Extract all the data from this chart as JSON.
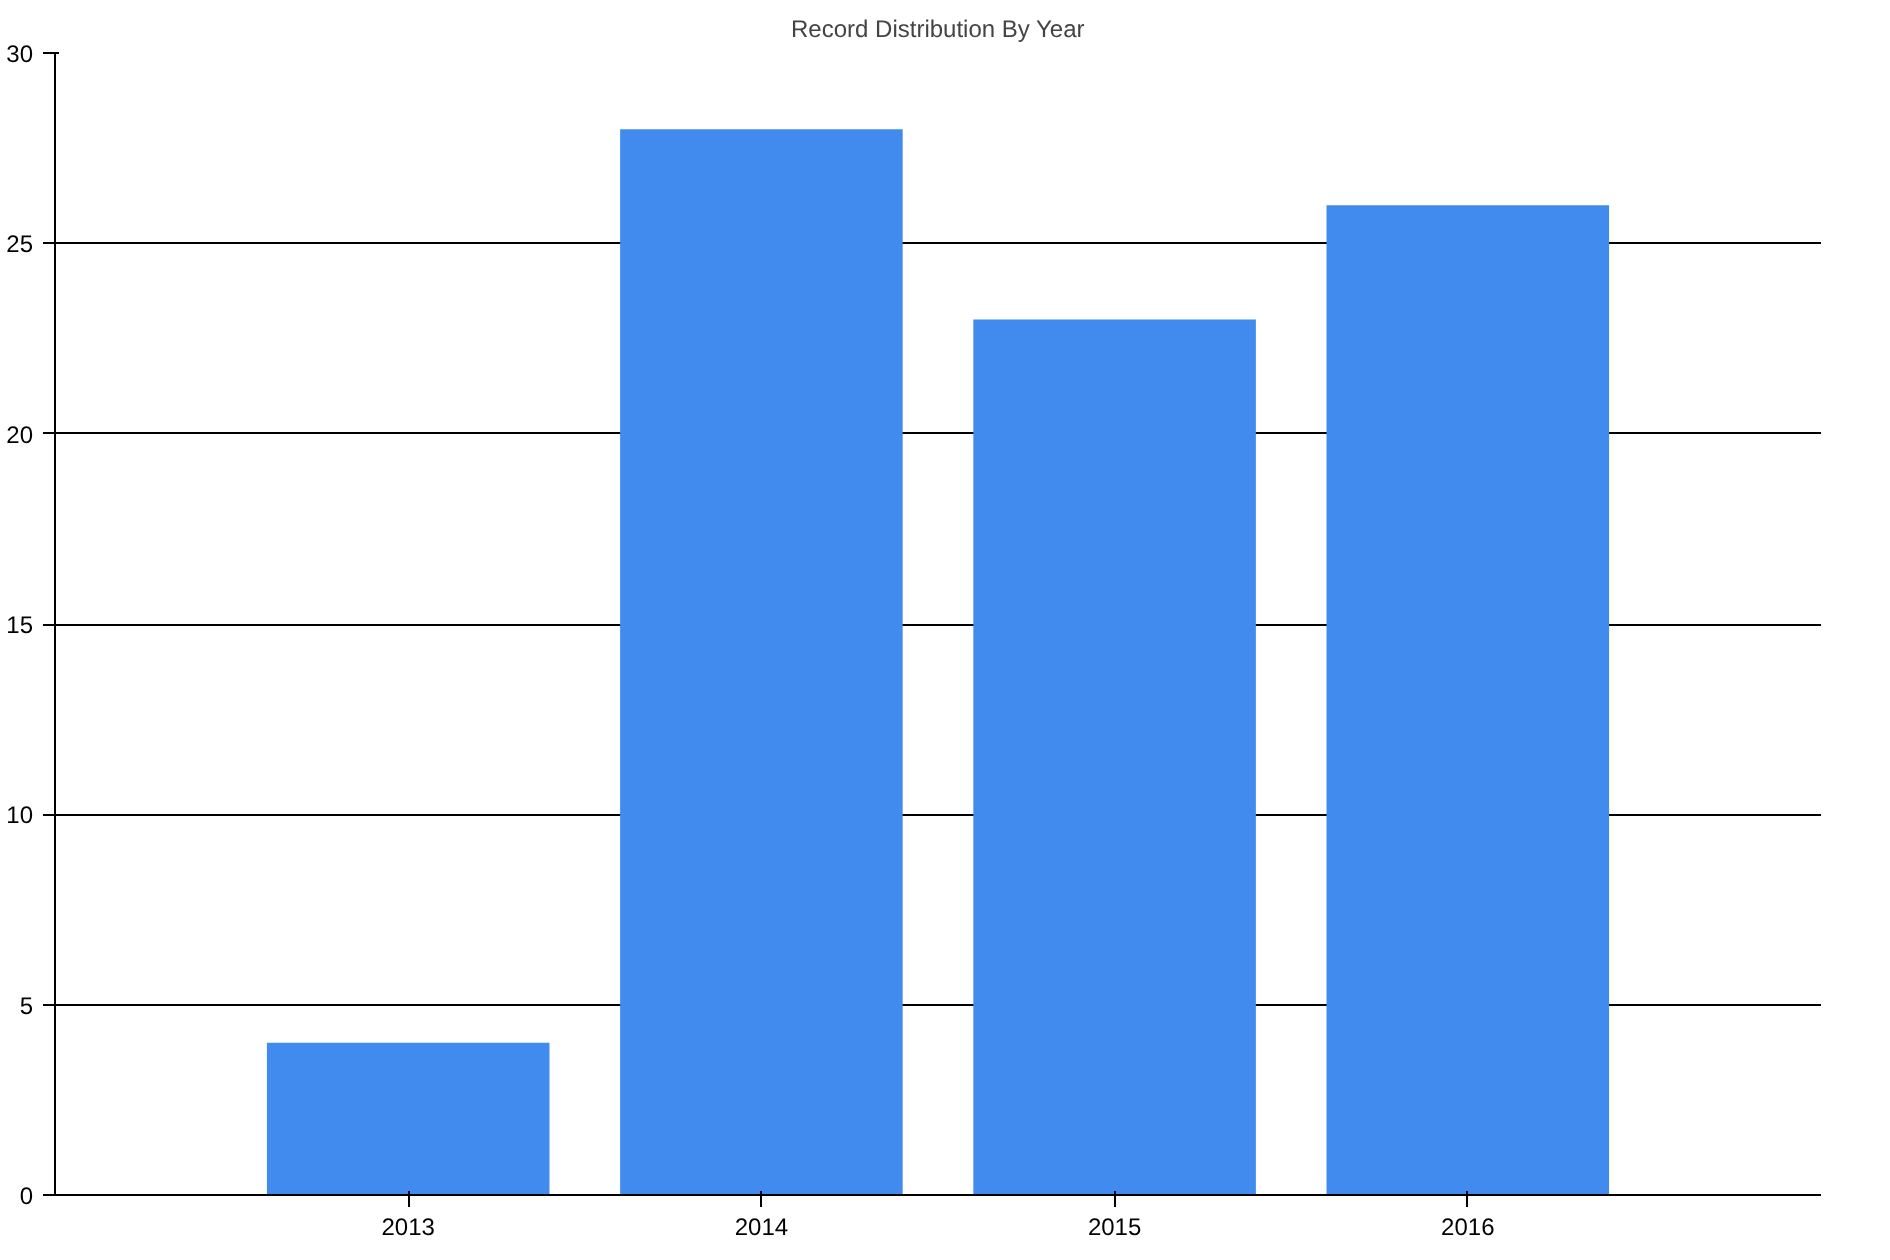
{
  "chart_data": {
    "type": "bar",
    "title": "Record Distribution By Year",
    "categories": [
      "2013",
      "2014",
      "2015",
      "2016"
    ],
    "values": [
      4,
      28,
      23,
      26
    ],
    "color": "#418bef",
    "ylim": [
      0,
      30
    ],
    "yticks": [
      0,
      5,
      10,
      15,
      20,
      25,
      30
    ],
    "grid": "y"
  }
}
